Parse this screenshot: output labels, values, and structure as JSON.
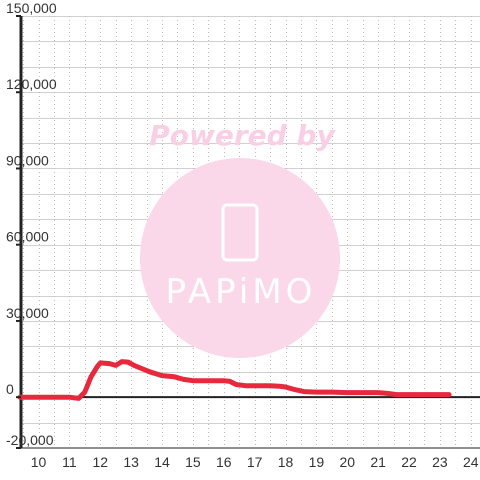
{
  "chart_data": {
    "type": "line",
    "title": "",
    "xlabel": "",
    "ylabel": "",
    "xlim": [
      9.4,
      24.3
    ],
    "ylim": [
      -20000,
      150000
    ],
    "x_ticks": [
      10,
      11,
      12,
      13,
      14,
      15,
      16,
      17,
      18,
      19,
      20,
      21,
      22,
      23,
      24
    ],
    "y_ticks": [
      -20000,
      0,
      30000,
      60000,
      90000,
      120000,
      150000
    ],
    "y_tick_labels": [
      "-20,000",
      "0",
      "30,000",
      "60,000",
      "90,000",
      "120,000",
      "150,000"
    ],
    "x_minor_step": 0.5,
    "y_minor_step": 10000,
    "grid": true,
    "legend": "none",
    "series": [
      {
        "color": "#e8283c",
        "x": [
          9.4,
          11.0,
          11.3,
          11.5,
          11.7,
          11.9,
          12.0,
          12.3,
          12.5,
          12.7,
          12.9,
          13.1,
          13.3,
          13.6,
          14.0,
          14.4,
          14.7,
          15.0,
          15.5,
          16.0,
          16.2,
          16.4,
          16.7,
          17.0,
          17.5,
          17.8,
          18.0,
          18.3,
          18.6,
          19.0,
          19.5,
          20.0,
          20.5,
          21.0,
          21.3,
          21.6,
          22.0,
          22.5,
          23.0,
          23.3
        ],
        "y": [
          0,
          0,
          -500,
          2000,
          8000,
          12000,
          13500,
          13200,
          12500,
          14000,
          13800,
          12500,
          11500,
          10000,
          8500,
          8000,
          7000,
          6500,
          6500,
          6500,
          6200,
          5000,
          4500,
          4500,
          4500,
          4300,
          4000,
          3000,
          2200,
          2000,
          2000,
          1800,
          1800,
          1800,
          1500,
          1000,
          1000,
          1000,
          1000,
          1000
        ]
      }
    ]
  },
  "watermark": {
    "powered_text": "Powered by",
    "brand_text": "PAPiMO",
    "color": "#fbd7ea",
    "text_color": "#f9cfe5"
  }
}
